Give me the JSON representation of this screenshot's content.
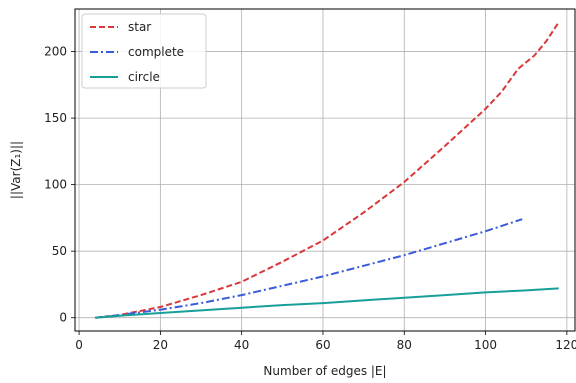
{
  "chart_data": {
    "type": "line",
    "xlabel": "Number of edges |E|",
    "ylabel": "||Var(Z₁)||",
    "xlim": [
      -1,
      122
    ],
    "ylim": [
      -10,
      232
    ],
    "xticks": [
      0,
      20,
      40,
      60,
      80,
      100,
      120
    ],
    "yticks": [
      0,
      50,
      100,
      150,
      200
    ],
    "grid": true,
    "legend_position": "top-left",
    "series": [
      {
        "name": "star",
        "color": "#d9383a",
        "style": "dashed",
        "x": [
          4,
          10,
          20,
          30,
          40,
          50,
          60,
          70,
          80,
          90,
          100,
          104,
          108,
          112,
          115,
          118
        ],
        "y": [
          0,
          2,
          8,
          17,
          27,
          42,
          58,
          79,
          102,
          129,
          157,
          170,
          187,
          197,
          208,
          222
        ]
      },
      {
        "name": "complete",
        "color": "#3a5bd9",
        "style": "dashdot",
        "x": [
          4,
          10,
          20,
          30,
          40,
          50,
          60,
          70,
          80,
          90,
          100,
          109
        ],
        "y": [
          0,
          2,
          6,
          11,
          17,
          24,
          31,
          39,
          47,
          56,
          65,
          74
        ]
      },
      {
        "name": "circle",
        "color": "#17a09a",
        "style": "solid",
        "x": [
          4,
          10,
          20,
          30,
          40,
          50,
          60,
          70,
          80,
          90,
          100,
          110,
          118
        ],
        "y": [
          0,
          1.5,
          3.5,
          5.5,
          7.5,
          9.5,
          11,
          13,
          15,
          17,
          19,
          20.5,
          22
        ]
      }
    ]
  }
}
